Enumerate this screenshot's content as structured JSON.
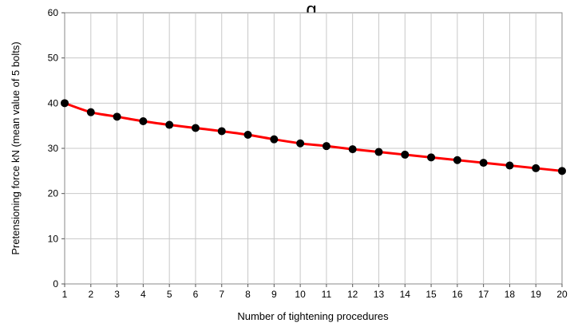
{
  "chart_data": {
    "type": "line",
    "title": "g",
    "xlabel": "Number of tightening procedures",
    "ylabel": "Pretensioning force kN (mean value of 5 bolts)",
    "xlim": [
      1,
      20
    ],
    "ylim": [
      0,
      60
    ],
    "x_ticks": [
      1,
      2,
      3,
      4,
      5,
      6,
      7,
      8,
      9,
      10,
      11,
      12,
      13,
      14,
      15,
      16,
      17,
      18,
      19,
      20
    ],
    "y_ticks": [
      0,
      10,
      20,
      30,
      40,
      50,
      60
    ],
    "grid": true,
    "legend": "none",
    "line_color": "#ff0000",
    "marker_color": "#000000",
    "series": [
      {
        "x": [
          1,
          2,
          3,
          4,
          5,
          6,
          7,
          8,
          9,
          10,
          11,
          12,
          13,
          14,
          15,
          16,
          17,
          18,
          19,
          20
        ],
        "values": [
          40,
          38,
          37,
          36,
          35.2,
          34.5,
          33.8,
          33,
          32,
          31.1,
          30.5,
          29.8,
          29.2,
          28.6,
          28,
          27.4,
          26.8,
          26.2,
          25.6,
          25
        ]
      }
    ]
  }
}
